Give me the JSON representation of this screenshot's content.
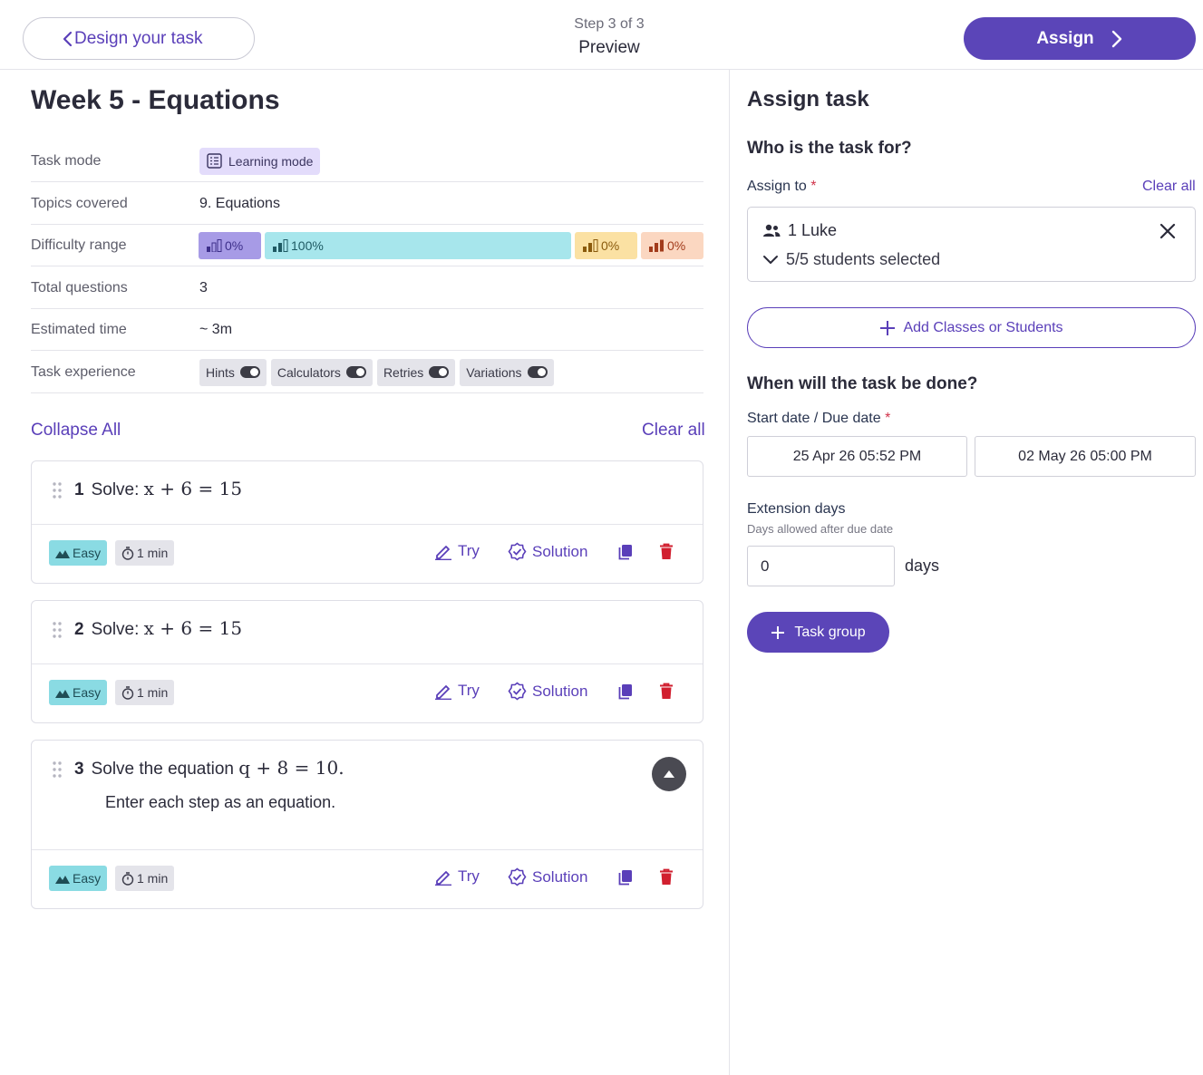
{
  "header": {
    "back_label": "Design your task",
    "step_text": "Step 3 of 3",
    "step_title": "Preview",
    "assign_label": "Assign"
  },
  "task": {
    "title": "Week 5 - Equations",
    "rows": [
      {
        "key": "Task mode",
        "value": "Learning mode"
      },
      {
        "key": "Topics covered",
        "value": "9. Equations"
      },
      {
        "key": "Difficulty range",
        "value": ""
      },
      {
        "key": "Total questions",
        "value": "3"
      },
      {
        "key": "Estimated time",
        "value": "~ 3m"
      },
      {
        "key": "Task experience",
        "value": ""
      }
    ],
    "difficulty": [
      {
        "label": "0%",
        "color": "#a79be6",
        "fraction": 0
      },
      {
        "label": "100%",
        "color": "#a7e6ec",
        "fraction": 1
      },
      {
        "label": "0%",
        "color": "#fbe1a3",
        "fraction": 0
      },
      {
        "label": "0%",
        "color": "#fbd7c1",
        "fraction": 0
      }
    ],
    "experience": [
      {
        "label": "Hints",
        "on": true
      },
      {
        "label": "Calculators",
        "on": true
      },
      {
        "label": "Retries",
        "on": true
      },
      {
        "label": "Variations",
        "on": true
      }
    ]
  },
  "list_controls": {
    "collapse_all": "Collapse All",
    "clear_all": "Clear all"
  },
  "questions": [
    {
      "number": "1",
      "prefix": "Solve:",
      "math": "x + 6 = 15",
      "sub": "",
      "difficulty": "Easy",
      "time": "1 min"
    },
    {
      "number": "2",
      "prefix": "Solve:",
      "math": "x + 6 = 15",
      "sub": "",
      "difficulty": "Easy",
      "time": "1 min"
    },
    {
      "number": "3",
      "prefix": "Solve the equation",
      "math": "q + 8 = 10.",
      "sub": "Enter each step as an equation.",
      "difficulty": "Easy",
      "time": "1 min"
    }
  ],
  "question_actions": {
    "try": "Try",
    "solution": "Solution"
  },
  "assign_panel": {
    "title": "Assign task",
    "who_heading": "Who is the task for?",
    "assign_to_label": "Assign to",
    "required_mark": "*",
    "clear_all": "Clear all",
    "assignee": "1 Luke",
    "selection": "5/5 students selected",
    "add_label": "Add Classes or Students",
    "when_heading": "When will the task be done?",
    "dates_label": "Start date / Due date",
    "start_date": "25 Apr 26 05:52 PM",
    "due_date": "02 May 26 05:00 PM",
    "extension_label": "Extension days",
    "extension_help": "Days allowed after due date",
    "extension_value": "0",
    "extension_unit": "days",
    "group_label": "Task group"
  }
}
